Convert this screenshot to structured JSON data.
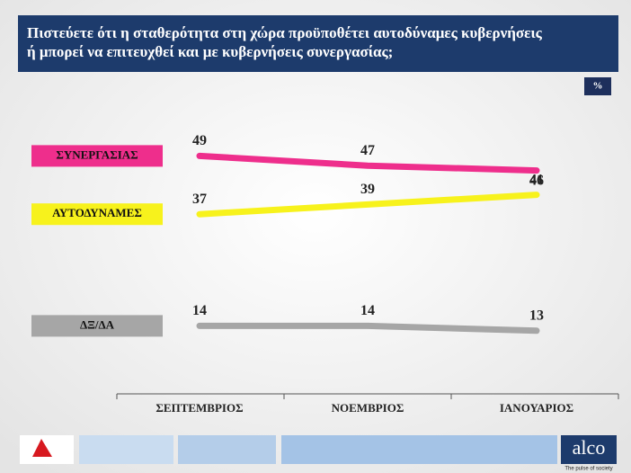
{
  "chart_data": {
    "type": "line",
    "title": "Πιστεύετε ότι η σταθερότητα στη χώρα προϋποθέτει αυτοδύναμες κυβερνήσεις",
    "subtitle": "ή μπορεί να επιτευχθεί και με κυβερνήσεις συνεργασίας;",
    "unit_badge": "%",
    "categories": [
      "ΣΕΠΤΕΜΒΡΙΟΣ",
      "ΝΟΕΜΒΡΙΟΣ",
      "ΙΑΝΟΥΑΡΙΟΣ"
    ],
    "series": [
      {
        "name": "ΣΥΝΕΡΓΑΣΙΑΣ",
        "color": "#ee2e8c",
        "values": [
          49,
          47,
          46
        ]
      },
      {
        "name": "ΑΥΤΟΔΥΝΑΜΕΣ",
        "color": "#f7f21c",
        "values": [
          37,
          39,
          41
        ]
      },
      {
        "name": "ΔΞ/ΔΑ",
        "color": "#a6a6a6",
        "values": [
          14,
          14,
          13
        ]
      }
    ],
    "ylim": [
      0,
      60
    ],
    "brand": "alco",
    "tagline": "The pulse of society"
  }
}
